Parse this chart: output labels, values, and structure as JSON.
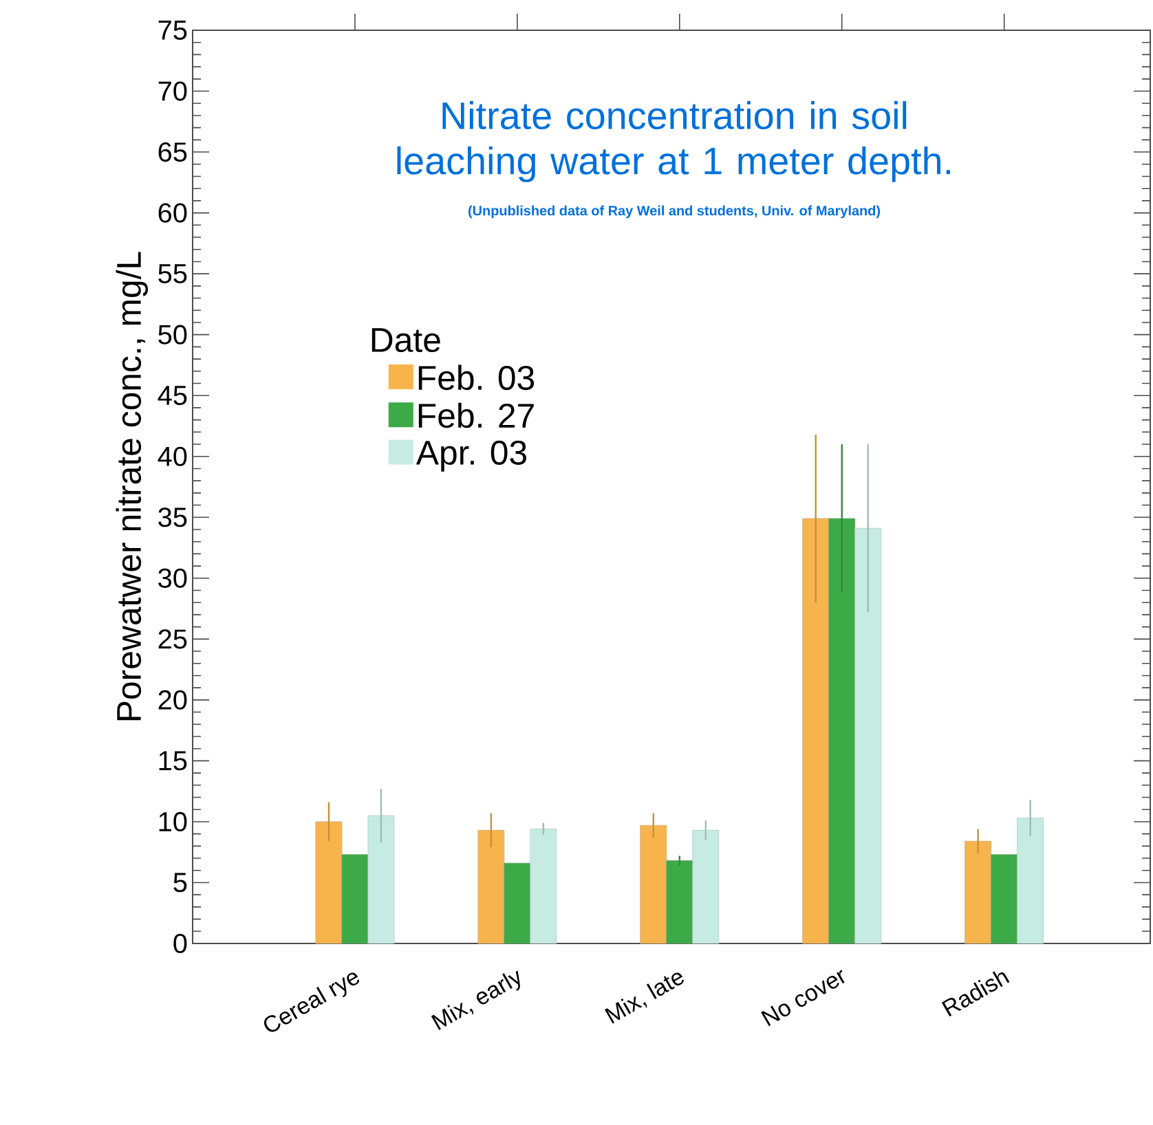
{
  "chart_data": {
    "type": "bar",
    "title": "Nitrate concentration in soil leaching water at 1 meter depth.",
    "subtitle": "(Unpublished data of Ray Weil and students, Univ. of Maryland)",
    "ylabel": "Porewatwer nitrate conc., mg/L",
    "legend_title": "Date",
    "categories": [
      "Cereal rye",
      "Mix, early",
      "Mix, late",
      "No cover",
      "Radish"
    ],
    "series": [
      {
        "name": "Feb. 03",
        "color": "#f7b44c",
        "values": [
          10.0,
          9.3,
          9.7,
          34.9,
          8.4
        ],
        "errors": [
          1.6,
          1.4,
          1.0,
          6.9,
          1.0
        ]
      },
      {
        "name": "Feb. 27",
        "color": "#3daa48",
        "values": [
          7.3,
          6.6,
          6.8,
          34.9,
          7.3
        ],
        "errors": [
          null,
          null,
          0.4,
          6.1,
          null
        ]
      },
      {
        "name": "Apr. 03",
        "color": "#c6ebe3",
        "values": [
          10.5,
          9.4,
          9.3,
          34.1,
          10.3
        ],
        "errors": [
          2.2,
          0.5,
          0.8,
          6.9,
          1.5
        ]
      }
    ],
    "ylim": [
      0,
      75
    ],
    "yticks": [
      0,
      5,
      10,
      15,
      20,
      25,
      30,
      35,
      40,
      45,
      50,
      55,
      60,
      65,
      70,
      75
    ],
    "grid": false,
    "legend": "top left"
  }
}
